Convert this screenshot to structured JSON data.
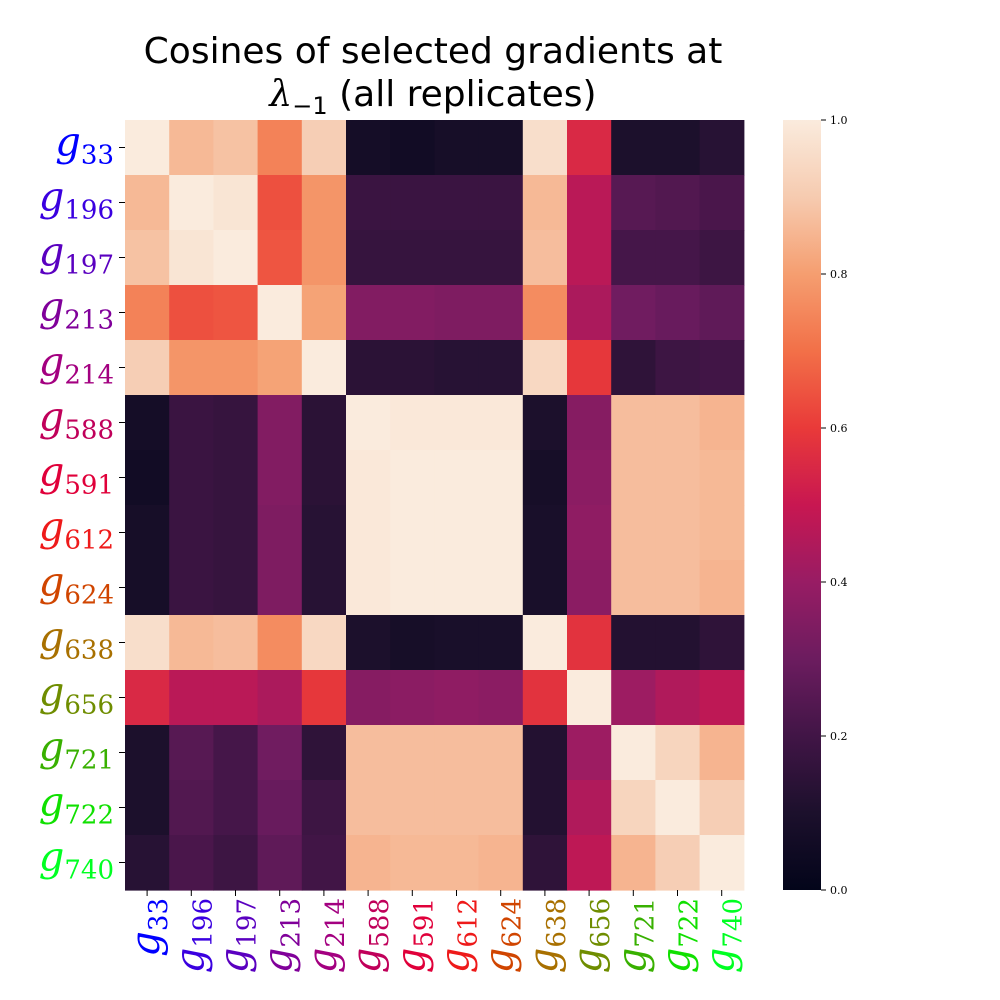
{
  "chart_data": {
    "type": "heatmap",
    "title_line1": "Cosines of selected gradients at",
    "title_symbol": "λ",
    "title_subscript": "−1",
    "title_suffix": " (all replicates)",
    "labels": [
      "33",
      "196",
      "197",
      "213",
      "214",
      "588",
      "591",
      "612",
      "624",
      "638",
      "656",
      "721",
      "722",
      "740"
    ],
    "label_letter": "g",
    "label_colors": [
      "#0000ff",
      "#3a00e0",
      "#5a00c0",
      "#80009a",
      "#a30080",
      "#c0005a",
      "#e0003a",
      "#ee1a1a",
      "#d04500",
      "#a87000",
      "#6f8d00",
      "#38b000",
      "#10e000",
      "#00ff22"
    ],
    "matrix": [
      [
        1.0,
        0.86,
        0.88,
        0.74,
        0.91,
        0.07,
        0.06,
        0.08,
        0.08,
        0.96,
        0.55,
        0.1,
        0.1,
        0.13
      ],
      [
        0.86,
        1.0,
        0.98,
        0.64,
        0.78,
        0.18,
        0.18,
        0.18,
        0.18,
        0.86,
        0.47,
        0.25,
        0.24,
        0.22
      ],
      [
        0.88,
        0.98,
        1.0,
        0.65,
        0.78,
        0.17,
        0.17,
        0.17,
        0.17,
        0.87,
        0.47,
        0.21,
        0.21,
        0.19
      ],
      [
        0.74,
        0.64,
        0.65,
        1.0,
        0.81,
        0.35,
        0.35,
        0.34,
        0.34,
        0.76,
        0.44,
        0.31,
        0.29,
        0.27
      ],
      [
        0.91,
        0.78,
        0.78,
        0.81,
        1.0,
        0.14,
        0.14,
        0.13,
        0.13,
        0.94,
        0.59,
        0.15,
        0.19,
        0.2
      ],
      [
        0.07,
        0.18,
        0.17,
        0.35,
        0.14,
        1.0,
        0.99,
        0.99,
        0.99,
        0.1,
        0.36,
        0.87,
        0.87,
        0.85
      ],
      [
        0.06,
        0.18,
        0.17,
        0.35,
        0.14,
        0.99,
        1.0,
        1.0,
        1.0,
        0.08,
        0.37,
        0.87,
        0.87,
        0.86
      ],
      [
        0.08,
        0.18,
        0.17,
        0.34,
        0.13,
        0.99,
        1.0,
        1.0,
        1.0,
        0.09,
        0.38,
        0.87,
        0.87,
        0.86
      ],
      [
        0.08,
        0.18,
        0.17,
        0.34,
        0.13,
        0.99,
        1.0,
        1.0,
        1.0,
        0.09,
        0.37,
        0.87,
        0.87,
        0.85
      ],
      [
        0.96,
        0.86,
        0.87,
        0.76,
        0.94,
        0.1,
        0.08,
        0.09,
        0.09,
        1.0,
        0.58,
        0.12,
        0.12,
        0.15
      ],
      [
        0.55,
        0.47,
        0.47,
        0.44,
        0.59,
        0.36,
        0.37,
        0.38,
        0.37,
        0.58,
        1.0,
        0.41,
        0.45,
        0.48
      ],
      [
        0.1,
        0.25,
        0.21,
        0.31,
        0.15,
        0.87,
        0.87,
        0.87,
        0.87,
        0.12,
        0.41,
        1.0,
        0.93,
        0.85
      ],
      [
        0.1,
        0.24,
        0.21,
        0.29,
        0.19,
        0.87,
        0.87,
        0.87,
        0.87,
        0.12,
        0.45,
        0.93,
        1.0,
        0.91
      ],
      [
        0.13,
        0.22,
        0.19,
        0.27,
        0.2,
        0.85,
        0.86,
        0.86,
        0.85,
        0.15,
        0.48,
        0.85,
        0.91,
        1.0
      ]
    ],
    "vmin": 0.0,
    "vmax": 1.0,
    "colormap": "rocket",
    "colorbar_ticks": [
      "0.0",
      "0.2",
      "0.4",
      "0.6",
      "0.8",
      "1.0"
    ],
    "colorbar_tick_values": [
      0.0,
      0.2,
      0.4,
      0.6,
      0.8,
      1.0
    ]
  }
}
